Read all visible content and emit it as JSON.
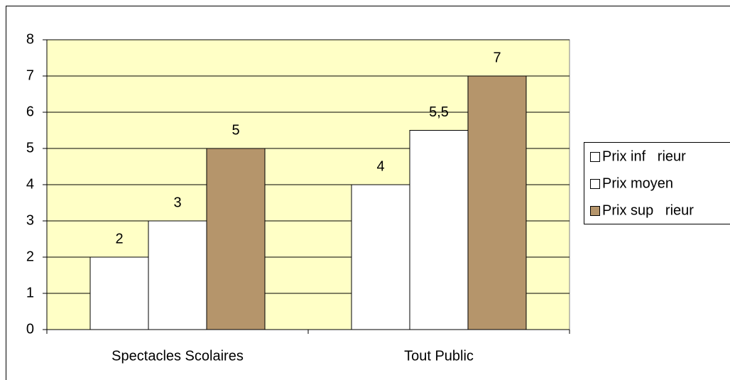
{
  "chart_data": {
    "type": "bar",
    "categories": [
      "Spectacles Scolaires",
      "Tout Public"
    ],
    "series": [
      {
        "name": "Prix inf   rieur",
        "color": "#ffffff",
        "values": [
          2,
          4
        ]
      },
      {
        "name": "Prix moyen",
        "color": "#ffffff",
        "values": [
          3,
          5.5
        ],
        "value_labels": [
          "3",
          "5,5"
        ]
      },
      {
        "name": "Prix sup   rieur",
        "color": "#b5956b",
        "values": [
          5,
          7
        ]
      }
    ],
    "ylim": [
      0,
      8
    ],
    "yticks": [
      0,
      1,
      2,
      3,
      4,
      5,
      6,
      7,
      8
    ],
    "grid": true,
    "plot_background": "#ffffc6",
    "legend": "right"
  }
}
